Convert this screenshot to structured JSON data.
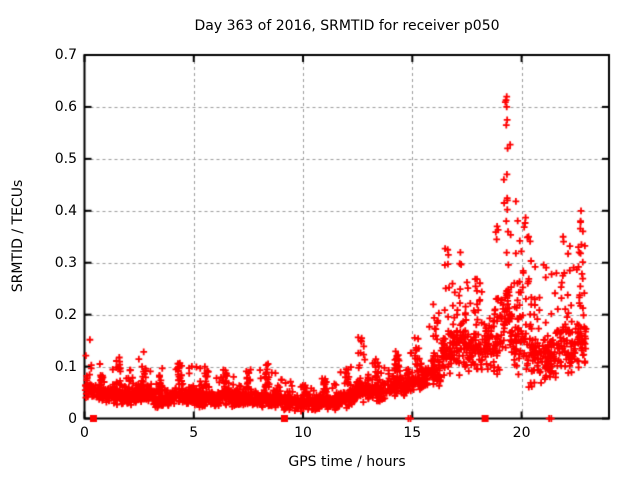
{
  "title": "Day 363 of 2016, SRMTID for receiver p050",
  "x_axis": {
    "label": "GPS time / hours",
    "tick_labels": [
      "0",
      "5",
      "10",
      "15",
      "20"
    ],
    "tick_values": [
      0,
      5,
      10,
      15,
      20
    ],
    "range": [
      0,
      24
    ]
  },
  "y_axis": {
    "label": "SRMTID / TECUs",
    "tick_labels": [
      "0",
      "0.1",
      "0.2",
      "0.3",
      "0.4",
      "0.5",
      "0.6",
      "0.7"
    ],
    "tick_values": [
      0,
      0.1,
      0.2,
      0.3,
      0.4,
      0.5,
      0.6,
      0.7
    ],
    "range": [
      0,
      0.7
    ]
  },
  "colors": {
    "points": "#ff0000",
    "grid": "#9c9c9c",
    "axis": "#000000",
    "background": "#ffffff",
    "text": "#000000"
  },
  "chart_data": {
    "type": "scatter",
    "title": "Day 363 of 2016, SRMTID for receiver p050",
    "xlabel": "GPS time / hours",
    "ylabel": "SRMTID / TECUs",
    "xlim": [
      0,
      24
    ],
    "ylim": [
      0,
      0.7
    ],
    "grid": true,
    "marker": "plus",
    "marker_color": "#ff0000",
    "data_extent_hours": [
      0.02,
      22.95
    ],
    "peak_point": [
      19.32,
      0.62
    ],
    "segment_format": "[x_start_hr, x_end_hr, n_points, y_band_low, y_band_high, y_envelope_max, [spike_x_centers]]",
    "density_segments": [
      [
        0.02,
        0.5,
        40,
        0.03,
        0.09,
        0.155,
        [
          0.12,
          0.25
        ]
      ],
      [
        0.5,
        1.0,
        55,
        0.03,
        0.07,
        0.11,
        [
          0.8
        ]
      ],
      [
        1.0,
        1.7,
        80,
        0.025,
        0.065,
        0.125,
        [
          1.55
        ]
      ],
      [
        1.7,
        2.4,
        80,
        0.025,
        0.06,
        0.1,
        [
          2.1
        ]
      ],
      [
        2.4,
        3.1,
        80,
        0.03,
        0.07,
        0.135,
        [
          2.7
        ]
      ],
      [
        3.1,
        4.0,
        100,
        0.02,
        0.06,
        0.1,
        [
          3.5
        ]
      ],
      [
        4.0,
        5.0,
        115,
        0.025,
        0.065,
        0.12,
        [
          4.35
        ]
      ],
      [
        5.0,
        6.0,
        115,
        0.02,
        0.06,
        0.11,
        [
          5.6
        ]
      ],
      [
        6.0,
        7.0,
        115,
        0.02,
        0.065,
        0.1,
        [
          6.4
        ]
      ],
      [
        7.0,
        8.0,
        115,
        0.02,
        0.055,
        0.095,
        [
          7.5
        ]
      ],
      [
        8.0,
        9.0,
        115,
        0.02,
        0.06,
        0.105,
        [
          8.35
        ]
      ],
      [
        9.0,
        9.6,
        60,
        0.015,
        0.05,
        0.08,
        []
      ],
      [
        9.6,
        10.6,
        100,
        0.012,
        0.045,
        0.07,
        [
          10.1
        ]
      ],
      [
        10.6,
        11.6,
        110,
        0.015,
        0.05,
        0.08,
        [
          11.0
        ]
      ],
      [
        11.6,
        12.4,
        95,
        0.02,
        0.06,
        0.1,
        [
          12.0
        ]
      ],
      [
        12.4,
        13.0,
        75,
        0.03,
        0.09,
        0.16,
        [
          12.6,
          12.75
        ]
      ],
      [
        13.0,
        13.9,
        90,
        0.03,
        0.08,
        0.12,
        [
          13.4
        ]
      ],
      [
        13.9,
        14.8,
        100,
        0.04,
        0.09,
        0.13,
        [
          14.3
        ]
      ],
      [
        14.8,
        15.6,
        85,
        0.05,
        0.1,
        0.16,
        [
          15.2
        ]
      ],
      [
        15.6,
        16.3,
        75,
        0.06,
        0.12,
        0.22,
        [
          16.1
        ]
      ],
      [
        16.3,
        17.0,
        70,
        0.08,
        0.18,
        0.33,
        [
          16.6,
          16.9
        ]
      ],
      [
        17.0,
        17.6,
        70,
        0.08,
        0.2,
        0.32,
        [
          17.2,
          17.45
        ]
      ],
      [
        17.6,
        18.3,
        70,
        0.08,
        0.18,
        0.28,
        [
          17.9,
          18.1
        ]
      ],
      [
        18.3,
        19.0,
        70,
        0.08,
        0.2,
        0.38,
        [
          18.85
        ]
      ],
      [
        19.0,
        19.6,
        65,
        0.1,
        0.28,
        0.62,
        [
          19.25,
          19.4
        ]
      ],
      [
        19.6,
        20.2,
        70,
        0.08,
        0.24,
        0.42,
        [
          19.9,
          20.1
        ]
      ],
      [
        20.2,
        20.9,
        70,
        0.05,
        0.2,
        0.35,
        [
          20.35,
          20.7
        ]
      ],
      [
        20.9,
        21.6,
        70,
        0.06,
        0.18,
        0.3,
        [
          21.1,
          21.5
        ]
      ],
      [
        21.6,
        22.3,
        70,
        0.07,
        0.2,
        0.35,
        [
          21.8,
          22.2
        ]
      ],
      [
        22.3,
        22.95,
        70,
        0.08,
        0.22,
        0.4,
        [
          22.6,
          22.75
        ]
      ]
    ],
    "highlight_points": [
      [
        19.32,
        0.62
      ],
      [
        19.32,
        0.6
      ],
      [
        19.34,
        0.575
      ],
      [
        19.3,
        0.565
      ],
      [
        19.36,
        0.52
      ],
      [
        19.33,
        0.47
      ],
      [
        19.35,
        0.42
      ],
      [
        19.3,
        0.38
      ],
      [
        19.38,
        0.36
      ],
      [
        22.72,
        0.4
      ],
      [
        22.7,
        0.38
      ],
      [
        21.9,
        0.35
      ],
      [
        20.32,
        0.35
      ],
      [
        16.62,
        0.325
      ],
      [
        16.65,
        0.315
      ],
      [
        17.2,
        0.32
      ],
      [
        22.6,
        0.33
      ],
      [
        18.88,
        0.37
      ],
      [
        18.86,
        0.345
      ]
    ],
    "baseline_square_points_x": [
      0.41,
      9.15,
      18.33
    ],
    "baseline_plus_points_x": [
      14.82,
      14.92,
      21.26,
      21.36
    ]
  },
  "seed": 1337
}
